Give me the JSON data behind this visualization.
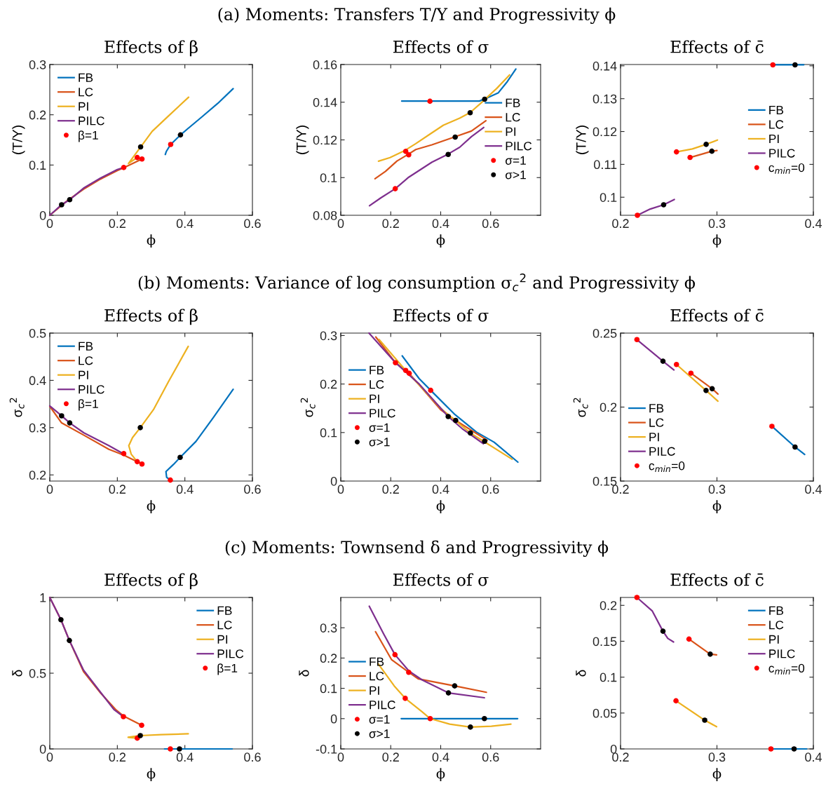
{
  "chart_data": [
    {
      "type": "line",
      "title": "Effects of β",
      "xlabel": "ϕ",
      "ylabel": "(T/Y)",
      "xlim": [
        0,
        0.6
      ],
      "ylim": [
        0,
        0.3
      ],
      "xticks": [
        0,
        0.2,
        0.4,
        0.6
      ],
      "yticks": [
        0,
        0.1,
        0.2,
        0.3
      ],
      "legend": "top left",
      "series": [
        {
          "name": "FB",
          "color": "#0072bd",
          "x": [
            0.342,
            0.345,
            0.358,
            0.387,
            0.408,
            0.449,
            0.498,
            0.543
          ],
          "values": [
            0.121,
            0.127,
            0.141,
            0.16,
            0.172,
            0.195,
            0.223,
            0.252
          ]
        },
        {
          "name": "LC",
          "color": "#d95319",
          "x": [
            0,
            0.05,
            0.1,
            0.15,
            0.2,
            0.22,
            0.273
          ],
          "values": [
            0,
            0.028,
            0.052,
            0.072,
            0.089,
            0.095,
            0.112
          ]
        },
        {
          "name": "PI",
          "color": "#edb120",
          "x": [
            0.259,
            0.233,
            0.269,
            0.303,
            0.352,
            0.411
          ],
          "values": [
            0.115,
            0.103,
            0.136,
            0.167,
            0.198,
            0.235
          ]
        },
        {
          "name": "PILC",
          "color": "#7e2f8e",
          "x": [
            0,
            0.035,
            0.059,
            0.1,
            0.15,
            0.2,
            0.219
          ],
          "values": [
            0,
            0.021,
            0.031,
            0.054,
            0.074,
            0.091,
            0.095
          ]
        },
        {
          "type": "scatter",
          "name": "β=1",
          "color": "#ff0000",
          "x": [
            0.219,
            0.259,
            0.273,
            0.358
          ],
          "values": [
            0.095,
            0.115,
            0.112,
            0.141
          ]
        },
        {
          "type": "scatter",
          "color": "#000000",
          "x": [
            0.035,
            0.059,
            0.269,
            0.387
          ],
          "values": [
            0.021,
            0.031,
            0.136,
            0.16
          ]
        }
      ]
    },
    {
      "type": "line",
      "title": "Effects of σ",
      "subtitle": "(a) Moments: Transfers T/Y and Progressivity ϕ",
      "xlabel": "ϕ",
      "ylabel": "(T/Y)",
      "xlim": [
        0,
        0.8
      ],
      "ylim": [
        0.08,
        0.16
      ],
      "xticks": [
        0,
        0.2,
        0.4,
        0.6
      ],
      "yticks": [
        0.08,
        0.1,
        0.12,
        0.14,
        0.16
      ],
      "legend": "right",
      "series": [
        {
          "name": "FB",
          "color": "#0072bd",
          "x": [
            0.244,
            0.357,
            0.555,
            0.579,
            0.63,
            0.667,
            0.701
          ],
          "values": [
            0.1406,
            0.1406,
            0.1406,
            0.1419,
            0.1449,
            0.151,
            0.1576
          ]
        },
        {
          "name": "LC",
          "color": "#d95319",
          "x": [
            0.137,
            0.179,
            0.225,
            0.272,
            0.3,
            0.365,
            0.458,
            0.523,
            0.581
          ],
          "values": [
            0.0994,
            0.1033,
            0.1088,
            0.1125,
            0.1149,
            0.1174,
            0.1217,
            0.1247,
            0.1302
          ]
        },
        {
          "name": "PI",
          "color": "#edb120",
          "x": [
            0.151,
            0.197,
            0.253,
            0.3,
            0.355,
            0.411,
            0.476,
            0.518,
            0.56,
            0.625,
            0.676
          ],
          "values": [
            0.1087,
            0.1106,
            0.1141,
            0.118,
            0.1229,
            0.1278,
            0.1315,
            0.1345,
            0.1394,
            0.1474,
            0.1545
          ]
        },
        {
          "name": "PILC",
          "color": "#7e2f8e",
          "x": [
            0.115,
            0.16,
            0.218,
            0.272,
            0.365,
            0.43,
            0.476,
            0.523,
            0.572
          ],
          "values": [
            0.0851,
            0.0892,
            0.0941,
            0.1002,
            0.1082,
            0.1125,
            0.1161,
            0.1217,
            0.1266
          ]
        },
        {
          "type": "scatter",
          "name": "σ=1",
          "color": "#ff0000",
          "x": [
            0.218,
            0.26,
            0.272,
            0.357
          ],
          "values": [
            0.0941,
            0.1139,
            0.1121,
            0.1405
          ]
        },
        {
          "type": "scatter",
          "name": "σ>1",
          "color": "#000000",
          "x": [
            0.43,
            0.458,
            0.518,
            0.576
          ],
          "values": [
            0.1123,
            0.1215,
            0.1344,
            0.1416
          ]
        }
      ]
    },
    {
      "type": "line",
      "title": "Effects of c̄",
      "xlabel": "ϕ",
      "ylabel": "(T/Y)",
      "xlim": [
        0.2,
        0.4
      ],
      "ylim": [
        0.0945,
        0.1404
      ],
      "xticks": [
        0.2,
        0.3,
        0.4
      ],
      "yticks": [
        0.1,
        0.11,
        0.12,
        0.13,
        0.14
      ],
      "legend": "right",
      "series": [
        {
          "name": "FB",
          "color": "#0072bd",
          "x": [
            0.358,
            0.381,
            0.39
          ],
          "values": [
            0.1403,
            0.1403,
            0.1403
          ]
        },
        {
          "name": "LC",
          "color": "#d95319",
          "x": [
            0.2721,
            0.2842,
            0.2947,
            0.3
          ],
          "values": [
            0.1121,
            0.1131,
            0.114,
            0.1142
          ]
        },
        {
          "name": "PI",
          "color": "#edb120",
          "x": [
            0.258,
            0.2745,
            0.2888,
            0.3005
          ],
          "values": [
            0.1138,
            0.1147,
            0.1161,
            0.1174
          ]
        },
        {
          "name": "PILC",
          "color": "#7e2f8e",
          "x": [
            0.2175,
            0.2308,
            0.2447,
            0.2558
          ],
          "values": [
            0.0945,
            0.0964,
            0.0977,
            0.0993
          ]
        },
        {
          "type": "scatter",
          "name": "c$_{min}$=0",
          "color": "#ff0000",
          "x": [
            0.2175,
            0.258,
            0.2721,
            0.358
          ],
          "values": [
            0.0945,
            0.1138,
            0.1121,
            0.1403
          ]
        },
        {
          "type": "scatter",
          "color": "#000000",
          "x": [
            0.2447,
            0.2888,
            0.2947,
            0.381
          ],
          "values": [
            0.0977,
            0.1161,
            0.114,
            0.1403
          ]
        }
      ]
    },
    {
      "type": "line",
      "title": "Effects of β",
      "xlabel": "ϕ",
      "ylabel": "σ$_{c}$$^{2}$",
      "xlim": [
        0,
        0.6
      ],
      "ylim": [
        0.187,
        0.5
      ],
      "xticks": [
        0,
        0.2,
        0.4,
        0.6
      ],
      "yticks": [
        0.2,
        0.3,
        0.4,
        0.5
      ],
      "legend": "top left",
      "series": [
        {
          "name": "FB",
          "color": "#0072bd",
          "x": [
            0.357,
            0.346,
            0.344,
            0.366,
            0.386,
            0.433,
            0.484,
            0.543
          ],
          "values": [
            0.189,
            0.195,
            0.207,
            0.222,
            0.237,
            0.271,
            0.321,
            0.381
          ]
        },
        {
          "name": "LC",
          "color": "#d95319",
          "x": [
            0,
            0.035,
            0.101,
            0.175,
            0.219,
            0.273
          ],
          "values": [
            0.345,
            0.31,
            0.284,
            0.254,
            0.242,
            0.223
          ]
        },
        {
          "name": "PI",
          "color": "#edb120",
          "x": [
            0.259,
            0.241,
            0.234,
            0.245,
            0.268,
            0.307,
            0.352,
            0.41
          ],
          "values": [
            0.228,
            0.244,
            0.262,
            0.279,
            0.3,
            0.338,
            0.398,
            0.472
          ]
        },
        {
          "name": "PILC",
          "color": "#7e2f8e",
          "x": [
            0,
            0.035,
            0.059,
            0.101,
            0.175,
            0.212
          ],
          "values": [
            0.346,
            0.325,
            0.31,
            0.289,
            0.262,
            0.247
          ]
        },
        {
          "type": "scatter",
          "name": "β=1",
          "color": "#ff0000",
          "x": [
            0.219,
            0.259,
            0.273,
            0.357
          ],
          "values": [
            0.245,
            0.228,
            0.223,
            0.189
          ]
        },
        {
          "type": "scatter",
          "color": "#000000",
          "x": [
            0.035,
            0.059,
            0.268,
            0.386
          ],
          "values": [
            0.325,
            0.31,
            0.3,
            0.237
          ]
        }
      ]
    },
    {
      "type": "line",
      "title": "Effects of σ",
      "subtitle": "(b) Moments: Variance of log consumption σ$_{c}$$^{2}$ and Progressivity ϕ",
      "xlabel": "ϕ",
      "ylabel": "σ$_{c}$$^{2}$",
      "xlim": [
        0,
        0.8
      ],
      "ylim": [
        0,
        0.305
      ],
      "xticks": [
        0,
        0.2,
        0.4,
        0.6
      ],
      "yticks": [
        0,
        0.1,
        0.2,
        0.3
      ],
      "legend": "left",
      "series": [
        {
          "name": "FB",
          "color": "#0072bd",
          "x": [
            0.246,
            0.314,
            0.36,
            0.457,
            0.543,
            0.614,
            0.709
          ],
          "values": [
            0.258,
            0.211,
            0.187,
            0.137,
            0.101,
            0.08,
            0.039
          ]
        },
        {
          "name": "LC",
          "color": "#d95319",
          "x": [
            0.14,
            0.219,
            0.274,
            0.4,
            0.46,
            0.586
          ],
          "values": [
            0.297,
            0.244,
            0.222,
            0.147,
            0.125,
            0.084
          ]
        },
        {
          "name": "PI",
          "color": "#edb120",
          "x": [
            0.153,
            0.26,
            0.4,
            0.519,
            0.686
          ],
          "values": [
            0.292,
            0.228,
            0.15,
            0.099,
            0.045
          ]
        },
        {
          "name": "PILC",
          "color": "#7e2f8e",
          "x": [
            0.113,
            0.219,
            0.314,
            0.43,
            0.486,
            0.571
          ],
          "values": [
            0.305,
            0.244,
            0.2,
            0.133,
            0.108,
            0.077
          ]
        },
        {
          "type": "scatter",
          "name": "σ=1",
          "color": "#ff0000",
          "x": [
            0.219,
            0.26,
            0.274,
            0.36
          ],
          "values": [
            0.244,
            0.228,
            0.222,
            0.187
          ]
        },
        {
          "type": "scatter",
          "name": "σ>1",
          "color": "#000000",
          "x": [
            0.43,
            0.46,
            0.519,
            0.576
          ],
          "values": [
            0.133,
            0.125,
            0.099,
            0.082
          ]
        }
      ]
    },
    {
      "type": "line",
      "title": "Effects of c̄",
      "xlabel": "ϕ",
      "ylabel": "σ$_{c}$$^{2}$",
      "xlim": [
        0.2,
        0.4
      ],
      "ylim": [
        0.15,
        0.25
      ],
      "xticks": [
        0.2,
        0.3,
        0.4
      ],
      "yticks": [
        0.15,
        0.2,
        0.25
      ],
      "legend": "bottom left",
      "series": [
        {
          "name": "FB",
          "color": "#0072bd",
          "x": [
            0.357,
            0.381,
            0.391
          ],
          "values": [
            0.187,
            0.173,
            0.168
          ]
        },
        {
          "name": "LC",
          "color": "#d95319",
          "x": [
            0.273,
            0.295,
            0.301
          ],
          "values": [
            0.2229,
            0.2124,
            0.2088
          ]
        },
        {
          "name": "PI",
          "color": "#edb120",
          "x": [
            0.258,
            0.2887,
            0.301
          ],
          "values": [
            0.2288,
            0.2112,
            0.204
          ]
        },
        {
          "name": "PILC",
          "color": "#7e2f8e",
          "x": [
            0.217,
            0.244,
            0.2554
          ],
          "values": [
            0.2456,
            0.231,
            0.2251
          ]
        },
        {
          "type": "scatter",
          "name": "c$_{min}$=0",
          "color": "#ff0000",
          "x": [
            0.217,
            0.258,
            0.273,
            0.357
          ],
          "values": [
            0.2456,
            0.2288,
            0.2229,
            0.187
          ]
        },
        {
          "type": "scatter",
          "color": "#000000",
          "x": [
            0.244,
            0.2887,
            0.295,
            0.381
          ],
          "values": [
            0.231,
            0.2112,
            0.2124,
            0.173
          ]
        }
      ]
    },
    {
      "type": "line",
      "title": "Effects of β",
      "xlabel": "ϕ",
      "ylabel": "δ",
      "xlim": [
        0,
        0.6
      ],
      "ylim": [
        0,
        1
      ],
      "xticks": [
        0,
        0.2,
        0.4,
        0.6
      ],
      "yticks": [
        0,
        0.5,
        1
      ],
      "legend": "top right",
      "series": [
        {
          "name": "FB",
          "color": "#0072bd",
          "x": [
            0.34,
            0.357,
            0.384,
            0.54
          ],
          "values": [
            0,
            0,
            0,
            0
          ]
        },
        {
          "name": "LC",
          "color": "#d95319",
          "x": [
            0,
            0.033,
            0.058,
            0.1,
            0.15,
            0.195,
            0.218,
            0.272
          ],
          "values": [
            1,
            0.853,
            0.716,
            0.51,
            0.37,
            0.26,
            0.218,
            0.156
          ]
        },
        {
          "name": "PI",
          "color": "#edb120",
          "x": [
            0.259,
            0.24,
            0.232,
            0.25,
            0.268,
            0.33,
            0.41
          ],
          "values": [
            0.071,
            0.074,
            0.077,
            0.083,
            0.088,
            0.094,
            0.1
          ]
        },
        {
          "name": "PILC",
          "color": "#7e2f8e",
          "x": [
            0,
            0.033,
            0.058,
            0.1,
            0.15,
            0.19,
            0.218
          ],
          "values": [
            1,
            0.853,
            0.716,
            0.52,
            0.375,
            0.26,
            0.213
          ]
        },
        {
          "type": "scatter",
          "name": "β=1",
          "color": "#ff0000",
          "x": [
            0.218,
            0.272,
            0.259,
            0.357
          ],
          "values": [
            0.213,
            0.156,
            0.071,
            0
          ]
        },
        {
          "type": "scatter",
          "color": "#000000",
          "x": [
            0.033,
            0.058,
            0.268,
            0.384
          ],
          "values": [
            0.853,
            0.716,
            0.088,
            0
          ]
        }
      ]
    },
    {
      "type": "line",
      "title": "Effects of σ",
      "subtitle": "(c) Moments: Townsend δ and Progressivity ϕ",
      "xlabel": "ϕ",
      "ylabel": "δ",
      "xlim": [
        0,
        0.8
      ],
      "ylim": [
        -0.1,
        0.4
      ],
      "xticks": [
        0,
        0.2,
        0.4,
        0.6
      ],
      "yticks": [
        -0.1,
        0,
        0.1,
        0.2,
        0.3
      ],
      "legend": "bottom left",
      "series": [
        {
          "name": "FB",
          "color": "#0072bd",
          "x": [
            0.242,
            0.358,
            0.575,
            0.708
          ],
          "values": [
            0,
            0,
            0,
            0
          ]
        },
        {
          "name": "LC",
          "color": "#d95319",
          "x": [
            0.139,
            0.203,
            0.272,
            0.311,
            0.456,
            0.583
          ],
          "values": [
            0.287,
            0.195,
            0.153,
            0.131,
            0.108,
            0.087
          ]
        },
        {
          "name": "PI",
          "color": "#edb120",
          "x": [
            0.15,
            0.214,
            0.258,
            0.325,
            0.358,
            0.436,
            0.519,
            0.603,
            0.681
          ],
          "values": [
            0.181,
            0.108,
            0.067,
            0.023,
            0,
            -0.018,
            -0.028,
            -0.025,
            -0.018
          ]
        },
        {
          "name": "PILC",
          "color": "#7e2f8e",
          "x": [
            0.114,
            0.172,
            0.217,
            0.272,
            0.325,
            0.431,
            0.575
          ],
          "values": [
            0.371,
            0.279,
            0.211,
            0.158,
            0.128,
            0.085,
            0.069
          ]
        },
        {
          "type": "scatter",
          "name": "σ=1",
          "color": "#ff0000",
          "x": [
            0.217,
            0.272,
            0.258,
            0.358
          ],
          "values": [
            0.211,
            0.153,
            0.067,
            0
          ]
        },
        {
          "type": "scatter",
          "name": "σ>1",
          "color": "#000000",
          "x": [
            0.431,
            0.456,
            0.519,
            0.575
          ],
          "values": [
            0.085,
            0.108,
            -0.028,
            0
          ]
        }
      ]
    },
    {
      "type": "line",
      "title": "Effects of c̄",
      "xlabel": "ϕ",
      "ylabel": "δ",
      "xlim": [
        0.2,
        0.4
      ],
      "ylim": [
        0,
        0.211
      ],
      "xticks": [
        0.2,
        0.3,
        0.4
      ],
      "yticks": [
        0,
        0.05,
        0.1,
        0.15,
        0.2
      ],
      "legend": "top right",
      "series": [
        {
          "name": "FB",
          "color": "#0072bd",
          "x": [
            0.356,
            0.38,
            0.393
          ],
          "values": [
            0,
            0,
            0
          ]
        },
        {
          "name": "LC",
          "color": "#d95319",
          "x": [
            0.271,
            0.293,
            0.2996
          ],
          "values": [
            0.153,
            0.132,
            0.131
          ]
        },
        {
          "name": "PI",
          "color": "#edb120",
          "x": [
            0.2575,
            0.2873,
            0.2996
          ],
          "values": [
            0.067,
            0.04,
            0.031
          ]
        },
        {
          "name": "PILC",
          "color": "#7e2f8e",
          "x": [
            0.217,
            0.233,
            0.244,
            0.249,
            0.255
          ],
          "values": [
            0.211,
            0.192,
            0.164,
            0.154,
            0.149
          ]
        },
        {
          "type": "scatter",
          "name": "c$_{min}$=0",
          "color": "#ff0000",
          "x": [
            0.217,
            0.271,
            0.2575,
            0.356
          ],
          "values": [
            0.211,
            0.153,
            0.067,
            0
          ]
        },
        {
          "type": "scatter",
          "color": "#000000",
          "x": [
            0.244,
            0.293,
            0.2873,
            0.38
          ],
          "values": [
            0.164,
            0.132,
            0.04,
            0
          ]
        }
      ]
    }
  ]
}
